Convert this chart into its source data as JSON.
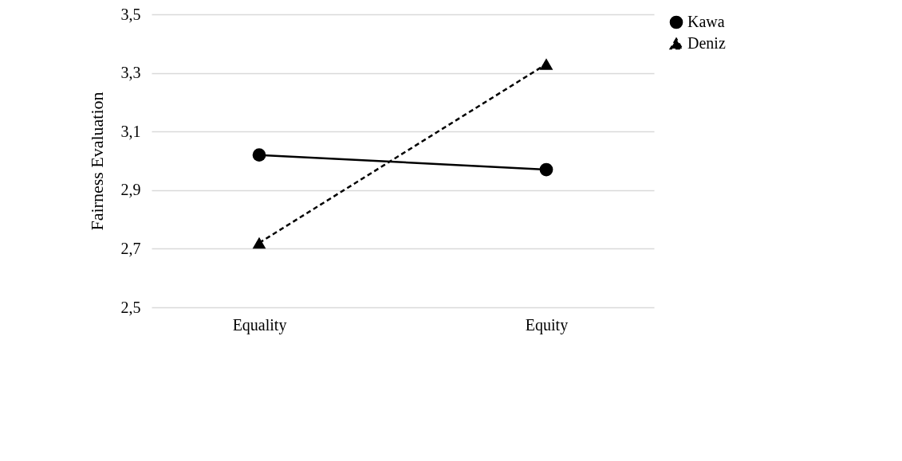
{
  "chart_data": {
    "type": "line",
    "ylabel": "Fairness Evaluation",
    "categories": [
      "Equality",
      "Equity"
    ],
    "ylim": [
      2.5,
      3.5
    ],
    "yticks": [
      {
        "value": 2.5,
        "label": "2,5"
      },
      {
        "value": 2.7,
        "label": "2,7"
      },
      {
        "value": 2.9,
        "label": "2,9"
      },
      {
        "value": 3.1,
        "label": "3,1"
      },
      {
        "value": 3.3,
        "label": "3,3"
      },
      {
        "value": 3.5,
        "label": "3,5"
      }
    ],
    "grid": "y",
    "legend": "right",
    "series": [
      {
        "name": "Kawa",
        "color": "#000000",
        "values": [
          3.02,
          2.97
        ],
        "marker": "circle",
        "line_style": "solid"
      },
      {
        "name": "Deniz",
        "color": "#000000",
        "values": [
          2.72,
          3.33
        ],
        "marker": "triangle",
        "line_style": "dashed"
      }
    ]
  }
}
